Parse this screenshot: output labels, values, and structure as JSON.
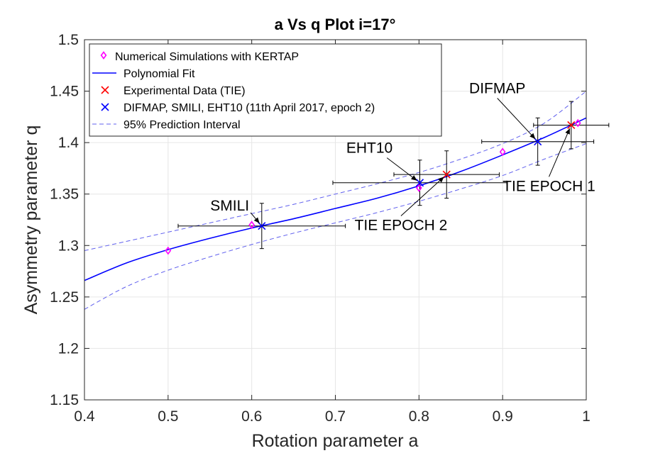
{
  "chart_data": {
    "type": "scatter",
    "title": "a Vs q Plot i=17°",
    "xlabel": "Rotation parameter a",
    "ylabel": "Asymmetry parameter q",
    "xlim": [
      0.4,
      1.0
    ],
    "ylim": [
      1.15,
      1.5
    ],
    "xticks": [
      0.4,
      0.5,
      0.6,
      0.7,
      0.8,
      0.9,
      1.0
    ],
    "xtick_labels": [
      "0.4",
      "0.5",
      "0.6",
      "0.7",
      "0.8",
      "0.9",
      "1"
    ],
    "yticks": [
      1.15,
      1.2,
      1.25,
      1.3,
      1.35,
      1.4,
      1.45,
      1.5
    ],
    "ytick_labels": [
      "1.15",
      "1.2",
      "1.25",
      "1.3",
      "1.35",
      "1.4",
      "1.45",
      "1.5"
    ],
    "grid": true,
    "legend_position": "top-left",
    "series": [
      {
        "name": "Numerical Simulations with KERTAP",
        "kind": "marker-diamond",
        "color": "#ff00ff",
        "points": [
          {
            "x": 0.5,
            "y": 1.295
          },
          {
            "x": 0.6,
            "y": 1.32
          },
          {
            "x": 0.8,
            "y": 1.356
          },
          {
            "x": 0.9,
            "y": 1.391
          },
          {
            "x": 0.99,
            "y": 1.419
          }
        ]
      },
      {
        "name": "Polynomial Fit",
        "kind": "line",
        "color": "#0000ff",
        "points": [
          {
            "x": 0.4,
            "y": 1.266
          },
          {
            "x": 0.45,
            "y": 1.283
          },
          {
            "x": 0.5,
            "y": 1.296
          },
          {
            "x": 0.55,
            "y": 1.307
          },
          {
            "x": 0.6,
            "y": 1.317
          },
          {
            "x": 0.65,
            "y": 1.326
          },
          {
            "x": 0.7,
            "y": 1.336
          },
          {
            "x": 0.75,
            "y": 1.346
          },
          {
            "x": 0.8,
            "y": 1.358
          },
          {
            "x": 0.85,
            "y": 1.372
          },
          {
            "x": 0.9,
            "y": 1.388
          },
          {
            "x": 0.95,
            "y": 1.405
          },
          {
            "x": 1.0,
            "y": 1.424
          }
        ]
      },
      {
        "name": "Experimental Data (TIE)",
        "kind": "marker-x",
        "color": "#ff0000",
        "points": [
          {
            "x": 0.833,
            "y": 1.369,
            "xerr": 0.063,
            "yerr": 0.023
          },
          {
            "x": 0.982,
            "y": 1.417,
            "xerr": 0.045,
            "yerr": 0.023
          }
        ]
      },
      {
        "name": "DIFMAP, SMILI, EHT10 (11th April 2017, epoch 2)",
        "kind": "marker-x",
        "color": "#0000ff",
        "points": [
          {
            "x": 0.612,
            "y": 1.319,
            "xerr": 0.1,
            "yerr": 0.022
          },
          {
            "x": 0.801,
            "y": 1.361,
            "xerr": 0.104,
            "yerr": 0.022
          },
          {
            "x": 0.942,
            "y": 1.401,
            "xerr": 0.067,
            "yerr": 0.023
          }
        ]
      },
      {
        "name": "95% Prediction Interval",
        "kind": "dashed-band",
        "color": "#6060ee",
        "upper": [
          {
            "x": 0.4,
            "y": 1.295
          },
          {
            "x": 0.45,
            "y": 1.304
          },
          {
            "x": 0.5,
            "y": 1.313
          },
          {
            "x": 0.55,
            "y": 1.322
          },
          {
            "x": 0.6,
            "y": 1.331
          },
          {
            "x": 0.65,
            "y": 1.34
          },
          {
            "x": 0.7,
            "y": 1.35
          },
          {
            "x": 0.75,
            "y": 1.36
          },
          {
            "x": 0.8,
            "y": 1.371
          },
          {
            "x": 0.85,
            "y": 1.384
          },
          {
            "x": 0.9,
            "y": 1.399
          },
          {
            "x": 0.95,
            "y": 1.419
          },
          {
            "x": 1.0,
            "y": 1.45
          }
        ],
        "lower": [
          {
            "x": 0.4,
            "y": 1.238
          },
          {
            "x": 0.45,
            "y": 1.26
          },
          {
            "x": 0.5,
            "y": 1.276
          },
          {
            "x": 0.55,
            "y": 1.289
          },
          {
            "x": 0.6,
            "y": 1.301
          },
          {
            "x": 0.65,
            "y": 1.312
          },
          {
            "x": 0.7,
            "y": 1.322
          },
          {
            "x": 0.75,
            "y": 1.332
          },
          {
            "x": 0.8,
            "y": 1.343
          },
          {
            "x": 0.85,
            "y": 1.355
          },
          {
            "x": 0.9,
            "y": 1.368
          },
          {
            "x": 0.95,
            "y": 1.384
          },
          {
            "x": 1.0,
            "y": 1.399
          }
        ]
      }
    ],
    "annotations": [
      {
        "text": "SMILI",
        "text_x": 0.597,
        "text_y": 1.334,
        "target_x": 0.612,
        "target_y": 1.319,
        "anchor": "end"
      },
      {
        "text": "EHT10",
        "text_x": 0.713,
        "text_y": 1.39,
        "target_x": 0.801,
        "target_y": 1.361,
        "anchor": "start"
      },
      {
        "text": "TIE  EPOCH 2",
        "text_x": 0.723,
        "text_y": 1.315,
        "target_x": 0.833,
        "target_y": 1.369,
        "anchor": "start"
      },
      {
        "text": "DIFMAP",
        "text_x": 0.86,
        "text_y": 1.448,
        "target_x": 0.942,
        "target_y": 1.401,
        "anchor": "start"
      },
      {
        "text": "TIE EPOCH 1",
        "text_x": 0.9,
        "text_y": 1.353,
        "target_x": 0.982,
        "target_y": 1.417,
        "anchor": "start"
      }
    ]
  }
}
